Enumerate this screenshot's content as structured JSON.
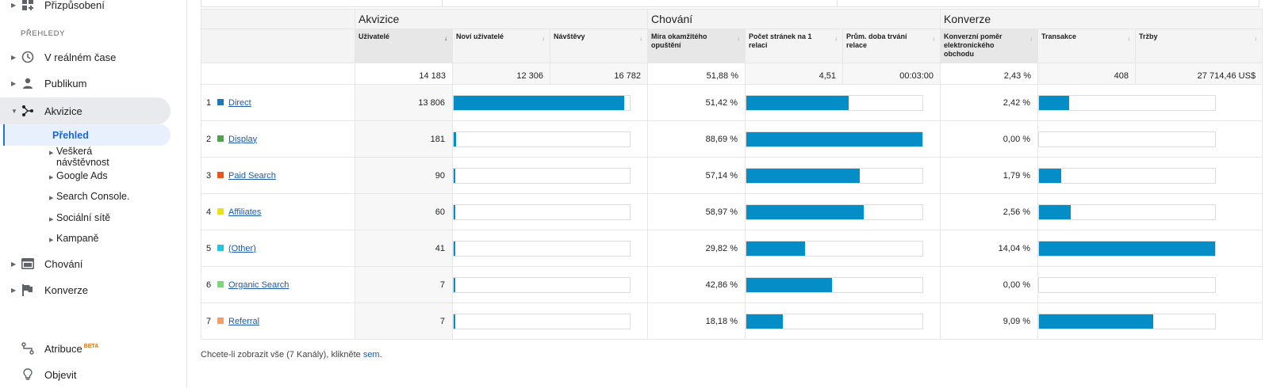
{
  "sidebar": {
    "top_item": "Přizpůsobení",
    "section": "PŘEHLEDY",
    "items": [
      {
        "label": "V reálném čase"
      },
      {
        "label": "Publikum"
      },
      {
        "label": "Akvizice"
      }
    ],
    "sub_active": "Přehled",
    "sub_items": [
      {
        "label_line1": "Veškerá",
        "label_line2": "návštěvnost"
      },
      {
        "label_line1": "Google Ads"
      },
      {
        "label_line1": "Search Console."
      },
      {
        "label_line1": "Sociální sítě"
      },
      {
        "label_line1": "Kampaně"
      }
    ],
    "bottom_items": [
      {
        "label": "Chování"
      },
      {
        "label": "Konverze"
      }
    ],
    "attribution": "Atribuce",
    "beta": "BETA",
    "discover": "Objevit"
  },
  "table": {
    "groups": [
      "Akvizice",
      "Chování",
      "Konverze"
    ],
    "headers": [
      "Uživatelé",
      "Noví uživatelé",
      "Návštěvy",
      "Míra okamžitého opuštění",
      "Počet stránek na 1 relaci",
      "Prům. doba trvání relace",
      "Konverzní poměr elektronického obchodu",
      "Transakce",
      "Tržby"
    ],
    "totals": [
      "14 183",
      "12 306",
      "16 782",
      "51,88 %",
      "4,51",
      "00:03:00",
      "2,43 %",
      "408",
      "27 714,46 US$"
    ],
    "rows": [
      {
        "rank": "1",
        "channel": "Direct",
        "color": "#1f77b4",
        "users": "13 806",
        "users_share": 0.969,
        "bounce": "51,42 %",
        "pages_share": 0.58,
        "conv": "2,42 %",
        "tx_share": 0.17
      },
      {
        "rank": "2",
        "channel": "Display",
        "color": "#50a14f",
        "users": "181",
        "users_share": 0.013,
        "bounce": "88,69 %",
        "pages_share": 1.0,
        "conv": "0,00 %",
        "tx_share": 0.0
      },
      {
        "rank": "3",
        "channel": "Paid Search",
        "color": "#e8581c",
        "users": "90",
        "users_share": 0.007,
        "bounce": "57,14 %",
        "pages_share": 0.645,
        "conv": "1,79 %",
        "tx_share": 0.125
      },
      {
        "rank": "4",
        "channel": "Affiliates",
        "color": "#e8e01c",
        "users": "60",
        "users_share": 0.005,
        "bounce": "58,97 %",
        "pages_share": 0.665,
        "conv": "2,56 %",
        "tx_share": 0.18
      },
      {
        "rank": "5",
        "channel": "(Other)",
        "color": "#29c4d6",
        "users": "41",
        "users_share": 0.003,
        "bounce": "29,82 %",
        "pages_share": 0.335,
        "conv": "14,04 %",
        "tx_share": 1.0
      },
      {
        "rank": "6",
        "channel": "Organic Search",
        "color": "#7ed67e",
        "users": "7",
        "users_share": 0.001,
        "bounce": "42,86 %",
        "pages_share": 0.485,
        "conv": "0,00 %",
        "tx_share": 0.0
      },
      {
        "rank": "7",
        "channel": "Referral",
        "color": "#f0a06a",
        "users": "7",
        "users_share": 0.001,
        "bounce": "18,18 %",
        "pages_share": 0.205,
        "conv": "9,09 %",
        "tx_share": 0.65
      }
    ]
  },
  "footnote": {
    "text": "Chcete-li zobrazit vše (7 Kanály), klikněte",
    "link": "sem",
    "end": "."
  }
}
